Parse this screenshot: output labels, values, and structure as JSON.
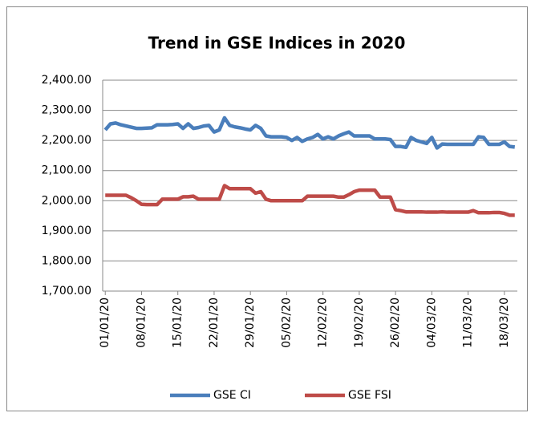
{
  "chart_data": {
    "type": "line",
    "title": "Trend in GSE Indices in 2020",
    "categories": [
      "01/01/20",
      null,
      null,
      null,
      null,
      null,
      null,
      "08/01/20",
      null,
      null,
      null,
      null,
      null,
      null,
      "15/01/20",
      null,
      null,
      null,
      null,
      null,
      null,
      "22/01/20",
      null,
      null,
      null,
      null,
      null,
      null,
      "29/01/20",
      null,
      null,
      null,
      null,
      null,
      null,
      "05/02/20",
      null,
      null,
      null,
      null,
      null,
      null,
      "12/02/20",
      null,
      null,
      null,
      null,
      null,
      null,
      "19/02/20",
      null,
      null,
      null,
      null,
      null,
      null,
      "26/02/20",
      null,
      null,
      null,
      null,
      null,
      null,
      "04/03/20",
      null,
      null,
      null,
      null,
      null,
      null,
      "11/03/20",
      null,
      null,
      null,
      null,
      null,
      null,
      "18/03/20",
      null,
      null
    ],
    "series": [
      {
        "name": "GSE CI",
        "color": "#4a7ebb",
        "values": [
          2235,
          2255,
          2258,
          2252,
          2248,
          2244,
          2240,
          2240,
          2241,
          2242,
          2252,
          2252,
          2252,
          2253,
          2255,
          2240,
          2255,
          2240,
          2243,
          2248,
          2250,
          2228,
          2235,
          2275,
          2250,
          2245,
          2242,
          2238,
          2235,
          2250,
          2240,
          2215,
          2212,
          2212,
          2212,
          2210,
          2200,
          2210,
          2197,
          2205,
          2210,
          2220,
          2205,
          2212,
          2205,
          2215,
          2222,
          2228,
          2215,
          2215,
          2215,
          2215,
          2205,
          2205,
          2205,
          2203,
          2180,
          2180,
          2177,
          2210,
          2200,
          2195,
          2190,
          2210,
          2175,
          2188,
          2187,
          2187,
          2187,
          2187,
          2187,
          2187,
          2212,
          2210,
          2187,
          2187,
          2187,
          2195,
          2180,
          2178
        ]
      },
      {
        "name": "GSE FSI",
        "color": "#be4b48",
        "values": [
          2018,
          2018,
          2018,
          2018,
          2018,
          2010,
          2000,
          1988,
          1987,
          1987,
          1987,
          2005,
          2005,
          2005,
          2005,
          2013,
          2013,
          2015,
          2005,
          2005,
          2005,
          2005,
          2005,
          2050,
          2040,
          2040,
          2040,
          2040,
          2040,
          2025,
          2030,
          2005,
          2000,
          2000,
          2000,
          2000,
          2000,
          2000,
          2000,
          2015,
          2015,
          2015,
          2015,
          2015,
          2015,
          2012,
          2012,
          2020,
          2030,
          2035,
          2035,
          2035,
          2035,
          2012,
          2012,
          2012,
          1970,
          1967,
          1963,
          1963,
          1963,
          1963,
          1962,
          1962,
          1962,
          1963,
          1962,
          1962,
          1962,
          1962,
          1962,
          1967,
          1960,
          1960,
          1960,
          1961,
          1961,
          1958,
          1952,
          1952
        ]
      }
    ],
    "ylim": [
      1700,
      2400
    ],
    "yticks": [
      {
        "value": 1700,
        "label": "1,700.00"
      },
      {
        "value": 1800,
        "label": "1,800.00"
      },
      {
        "value": 1900,
        "label": "1,900.00"
      },
      {
        "value": 2000,
        "label": "2,000.00"
      },
      {
        "value": 2100,
        "label": "2,100.00"
      },
      {
        "value": 2200,
        "label": "2,200.00"
      },
      {
        "value": 2300,
        "label": "2,300.00"
      },
      {
        "value": 2400,
        "label": "2,400.00"
      }
    ],
    "grid": true,
    "legend": "bottom"
  }
}
